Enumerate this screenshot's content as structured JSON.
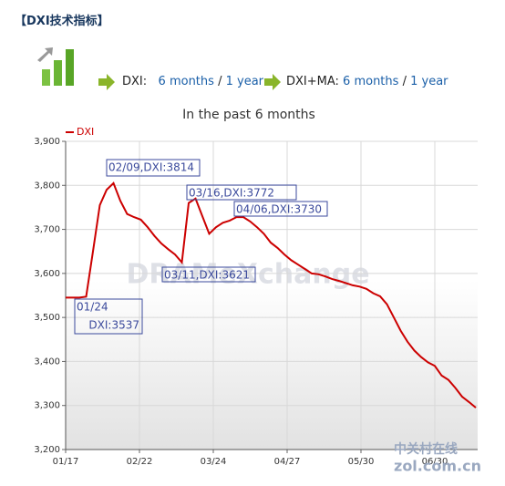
{
  "header": {
    "title": "【DXI技术指标】"
  },
  "nav": [
    {
      "label": "DXI:",
      "links": [
        "6 months",
        "1 year"
      ],
      "separator": "/"
    },
    {
      "label": "DXI+MA:",
      "links": [
        "6 months",
        "1 year"
      ],
      "separator": "/"
    }
  ],
  "chart_data": {
    "type": "line",
    "title": "In the past 6 months",
    "xtick_labels": [
      "01/17",
      "02/22",
      "03/24",
      "04/27",
      "05/30",
      "06/30"
    ],
    "series": [
      {
        "name": "DXI",
        "color": "#cc0000",
        "values": [
          3545,
          3545,
          3545,
          3547,
          3650,
          3755,
          3790,
          3805,
          3765,
          3735,
          3728,
          3722,
          3705,
          3685,
          3668,
          3655,
          3643,
          3625,
          3760,
          3770,
          3730,
          3690,
          3705,
          3715,
          3720,
          3728,
          3728,
          3718,
          3705,
          3690,
          3670,
          3658,
          3643,
          3630,
          3620,
          3610,
          3600,
          3598,
          3593,
          3587,
          3583,
          3578,
          3573,
          3570,
          3565,
          3555,
          3548,
          3530,
          3500,
          3470,
          3445,
          3425,
          3410,
          3398,
          3390,
          3368,
          3358,
          3340,
          3320,
          3308,
          3295
        ]
      }
    ],
    "ylim": [
      3200,
      3900
    ],
    "yticks": [
      {
        "value": 3200,
        "label": "3,200"
      },
      {
        "value": 3300,
        "label": "3,300"
      },
      {
        "value": 3400,
        "label": "3,400"
      },
      {
        "value": 3500,
        "label": "3,500"
      },
      {
        "value": 3600,
        "label": "3,600"
      },
      {
        "value": 3700,
        "label": "3,700"
      },
      {
        "value": 3800,
        "label": "3,800"
      },
      {
        "value": 3900,
        "label": "3,900"
      }
    ],
    "grid": true,
    "annotations": [
      [
        "02/09,DXI:3814"
      ],
      [
        "03/16,DXI:3772"
      ],
      [
        "04/06,DXI:3730"
      ],
      [
        "03/11,DXI:3621"
      ],
      [
        "01/24",
        "DXI:3537"
      ]
    ],
    "watermarks": [
      "DRAMeXchange",
      "中关村在线",
      "zol.com.cn"
    ]
  }
}
